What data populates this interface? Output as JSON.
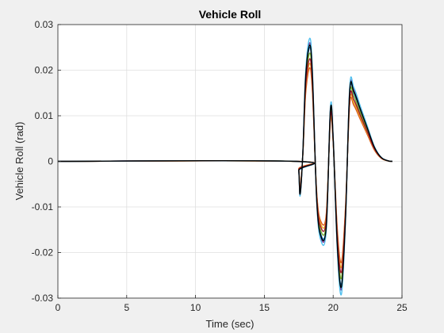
{
  "chart_data": {
    "type": "line",
    "title": "Vehicle Roll",
    "xlabel": "Time (sec)",
    "ylabel": "Vehicle Roll (rad)",
    "xlim": [
      0,
      25
    ],
    "ylim": [
      -0.03,
      0.03
    ],
    "xticks": [
      0,
      5,
      10,
      15,
      20,
      25
    ],
    "yticks": [
      -0.03,
      -0.02,
      -0.01,
      0,
      0.01,
      0.02,
      0.03
    ],
    "xtick_labels": [
      "0",
      "5",
      "10",
      "15",
      "20",
      "25"
    ],
    "ytick_labels": [
      "-0.03",
      "-0.02",
      "-0.01",
      "0",
      "0.01",
      "0.02",
      "0.03"
    ],
    "grid": true,
    "background": "#ffffff",
    "series": [
      {
        "color": "#0072bd",
        "scale": 1.0,
        "x": [
          0,
          17.3,
          17.5,
          17.6,
          17.8,
          18.0,
          18.3,
          18.5,
          18.8,
          19.1,
          19.5,
          19.8,
          20.0,
          20.3,
          20.6,
          20.9,
          21.2,
          21.5,
          22.0,
          22.5,
          23.0,
          23.5,
          24.0,
          24.3
        ],
        "y": [
          0,
          0,
          -0.002,
          -0.007,
          0.002,
          0.018,
          0.025,
          0.018,
          -0.008,
          -0.016,
          -0.014,
          0.011,
          0.005,
          -0.018,
          -0.027,
          -0.012,
          0.015,
          0.015,
          0.011,
          0.007,
          0.003,
          0.0008,
          0.0001,
          0
        ]
      },
      {
        "color": "#d95319",
        "scale": 0.82,
        "x": [
          0,
          17.3,
          17.5,
          17.6,
          17.8,
          18.0,
          18.3,
          18.5,
          18.8,
          19.1,
          19.5,
          19.8,
          20.0,
          20.3,
          20.6,
          20.9,
          21.2,
          21.5,
          22.0,
          22.5,
          23.0,
          23.5,
          24.0,
          24.3
        ],
        "y": [
          0,
          0,
          -0.002,
          -0.007,
          0.002,
          0.018,
          0.025,
          0.018,
          -0.008,
          -0.016,
          -0.014,
          0.011,
          0.005,
          -0.018,
          -0.027,
          -0.012,
          0.015,
          0.015,
          0.011,
          0.007,
          0.003,
          0.0008,
          0.0001,
          0
        ]
      },
      {
        "color": "#edb120",
        "scale": 0.86,
        "x": [
          0,
          17.3,
          17.5,
          17.6,
          17.8,
          18.0,
          18.3,
          18.5,
          18.8,
          19.1,
          19.5,
          19.8,
          20.0,
          20.3,
          20.6,
          20.9,
          21.2,
          21.5,
          22.0,
          22.5,
          23.0,
          23.5,
          24.0,
          24.3
        ],
        "y": [
          0,
          0,
          -0.002,
          -0.007,
          0.002,
          0.018,
          0.025,
          0.018,
          -0.008,
          -0.016,
          -0.014,
          0.011,
          0.005,
          -0.018,
          -0.027,
          -0.012,
          0.015,
          0.015,
          0.011,
          0.007,
          0.003,
          0.0008,
          0.0001,
          0
        ]
      },
      {
        "color": "#7e2f8e",
        "scale": 1.04,
        "x": [
          0,
          17.3,
          17.5,
          17.6,
          17.8,
          18.0,
          18.3,
          18.5,
          18.8,
          19.1,
          19.5,
          19.8,
          20.0,
          20.3,
          20.6,
          20.9,
          21.2,
          21.5,
          22.0,
          22.5,
          23.0,
          23.5,
          24.0,
          24.3
        ],
        "y": [
          0,
          0,
          -0.002,
          -0.007,
          0.002,
          0.018,
          0.025,
          0.018,
          -0.008,
          -0.016,
          -0.014,
          0.011,
          0.005,
          -0.018,
          -0.027,
          -0.012,
          0.015,
          0.015,
          0.011,
          0.007,
          0.003,
          0.0008,
          0.0001,
          0
        ]
      },
      {
        "color": "#77ac30",
        "scale": 0.95,
        "x": [
          0,
          17.3,
          17.5,
          17.6,
          17.8,
          18.0,
          18.3,
          18.5,
          18.8,
          19.1,
          19.5,
          19.8,
          20.0,
          20.3,
          20.6,
          20.9,
          21.2,
          21.5,
          22.0,
          22.5,
          23.0,
          23.5,
          24.0,
          24.3
        ],
        "y": [
          0,
          0,
          -0.002,
          -0.007,
          0.002,
          0.018,
          0.025,
          0.018,
          -0.008,
          -0.016,
          -0.014,
          0.011,
          0.005,
          -0.018,
          -0.027,
          -0.012,
          0.015,
          0.015,
          0.011,
          0.007,
          0.003,
          0.0008,
          0.0001,
          0
        ]
      },
      {
        "color": "#a2142f",
        "scale": 0.9,
        "x": [
          0,
          17.3,
          17.5,
          17.6,
          17.8,
          18.0,
          18.3,
          18.5,
          18.8,
          19.1,
          19.5,
          19.8,
          20.0,
          20.3,
          20.6,
          20.9,
          21.2,
          21.5,
          22.0,
          22.5,
          23.0,
          23.5,
          24.0,
          24.3
        ],
        "y": [
          0,
          0,
          -0.002,
          -0.007,
          0.002,
          0.018,
          0.025,
          0.018,
          -0.008,
          -0.016,
          -0.014,
          0.011,
          0.005,
          -0.018,
          -0.027,
          -0.012,
          0.015,
          0.015,
          0.011,
          0.007,
          0.003,
          0.0008,
          0.0001,
          0
        ]
      },
      {
        "color": "#4dbeee",
        "scale": 1.08,
        "x": [
          0,
          17.3,
          17.5,
          17.6,
          17.8,
          18.0,
          18.3,
          18.5,
          18.8,
          19.1,
          19.5,
          19.8,
          20.0,
          20.3,
          20.6,
          20.9,
          21.2,
          21.5,
          22.0,
          22.5,
          23.0,
          23.5,
          24.0,
          24.3
        ],
        "y": [
          0,
          0,
          -0.002,
          -0.007,
          0.002,
          0.018,
          0.025,
          0.018,
          -0.008,
          -0.016,
          -0.014,
          0.011,
          0.005,
          -0.018,
          -0.027,
          -0.012,
          0.015,
          0.015,
          0.011,
          0.007,
          0.003,
          0.0008,
          0.0001,
          0
        ]
      },
      {
        "color": "#000000",
        "scale": 1.02,
        "x": [
          0,
          17.3,
          17.5,
          17.6,
          17.8,
          18.0,
          18.3,
          18.5,
          18.8,
          19.1,
          19.5,
          19.8,
          20.0,
          20.3,
          20.6,
          20.9,
          21.2,
          21.5,
          22.0,
          22.5,
          23.0,
          23.5,
          24.0,
          24.3
        ],
        "y": [
          0,
          0,
          -0.002,
          -0.007,
          0.002,
          0.018,
          0.025,
          0.018,
          -0.008,
          -0.016,
          -0.014,
          0.011,
          0.005,
          -0.018,
          -0.027,
          -0.012,
          0.015,
          0.015,
          0.011,
          0.007,
          0.003,
          0.0008,
          0.0001,
          0
        ]
      }
    ]
  }
}
